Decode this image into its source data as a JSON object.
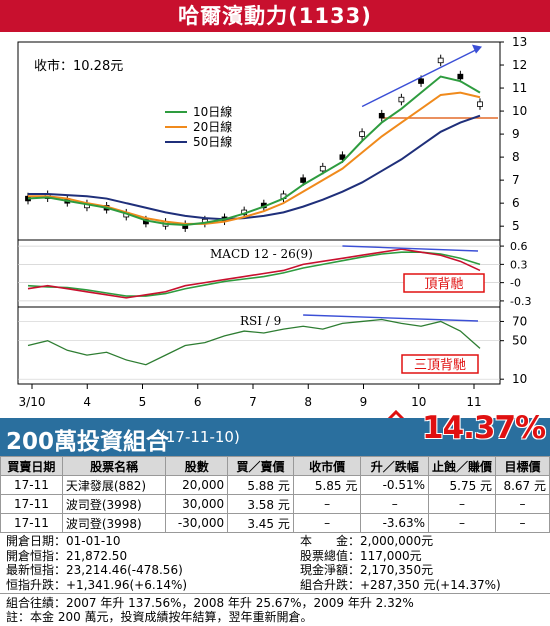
{
  "title": "哈爾濱動力(1133)",
  "chart_data": {
    "type": "line",
    "price_panel": {
      "close_label": "收市：10.28元",
      "yaxis_ticks": [
        "13",
        "12",
        "11",
        "10",
        "9",
        "8",
        "7",
        "6",
        "5"
      ],
      "ylim": [
        4.4,
        13
      ],
      "legend": [
        "10日線",
        "20日線",
        "50日線"
      ],
      "series": [
        {
          "name": "10日線",
          "color": "#2e9c3f"
        },
        {
          "name": "20日線",
          "color": "#f08a1c"
        },
        {
          "name": "50日線",
          "color": "#1f2f7a"
        }
      ],
      "reference_line": 9.7,
      "x": [
        "3/10",
        "4",
        "5",
        "6",
        "7",
        "8",
        "9",
        "10",
        "11"
      ],
      "price_approx": [
        6.2,
        6.3,
        6.1,
        5.9,
        5.8,
        5.5,
        5.2,
        5.1,
        5.0,
        5.2,
        5.3,
        5.6,
        5.9,
        6.3,
        7.0,
        7.5,
        8.0,
        9.0,
        9.8,
        10.5,
        11.3,
        12.2,
        11.5,
        10.3
      ],
      "ma10_approx": [
        6.2,
        6.25,
        6.1,
        5.95,
        5.8,
        5.55,
        5.25,
        5.1,
        5.05,
        5.15,
        5.3,
        5.55,
        5.85,
        6.2,
        6.8,
        7.3,
        7.8,
        8.7,
        9.5,
        10.1,
        10.8,
        11.5,
        11.3,
        10.8
      ],
      "ma20_approx": [
        6.3,
        6.3,
        6.2,
        6.0,
        5.85,
        5.6,
        5.35,
        5.2,
        5.1,
        5.1,
        5.2,
        5.4,
        5.65,
        6.0,
        6.5,
        7.0,
        7.5,
        8.2,
        8.9,
        9.5,
        10.1,
        10.7,
        10.8,
        10.6
      ],
      "ma50_approx": [
        6.4,
        6.4,
        6.35,
        6.3,
        6.2,
        6.0,
        5.8,
        5.6,
        5.45,
        5.35,
        5.3,
        5.35,
        5.45,
        5.6,
        5.85,
        6.15,
        6.5,
        6.9,
        7.4,
        7.9,
        8.5,
        9.1,
        9.5,
        9.8
      ]
    },
    "macd_panel": {
      "label": "MACD 12 - 26(9)",
      "yaxis_ticks": [
        "0.6",
        "0.3",
        "-0",
        "-0.3"
      ],
      "ylim": [
        -0.4,
        0.7
      ],
      "annotation": "頂背馳",
      "macd_approx": [
        -0.1,
        -0.05,
        -0.1,
        -0.15,
        -0.2,
        -0.25,
        -0.2,
        -0.15,
        -0.05,
        0.0,
        0.05,
        0.1,
        0.15,
        0.2,
        0.3,
        0.35,
        0.4,
        0.45,
        0.5,
        0.55,
        0.5,
        0.45,
        0.35,
        0.2
      ],
      "signal_approx": [
        -0.05,
        -0.07,
        -0.08,
        -0.12,
        -0.17,
        -0.22,
        -0.22,
        -0.18,
        -0.1,
        -0.04,
        0.02,
        0.06,
        0.1,
        0.16,
        0.24,
        0.3,
        0.36,
        0.42,
        0.47,
        0.5,
        0.5,
        0.47,
        0.4,
        0.3
      ]
    },
    "rsi_panel": {
      "label": "RSI / 9",
      "yaxis_ticks": [
        "70",
        "50",
        "10"
      ],
      "ylim": [
        5,
        85
      ],
      "annotation": "三頂背馳",
      "rsi_approx": [
        45,
        50,
        40,
        35,
        38,
        30,
        25,
        35,
        45,
        48,
        55,
        60,
        58,
        62,
        65,
        62,
        68,
        70,
        72,
        68,
        65,
        70,
        60,
        42
      ]
    },
    "x_ticks": [
      "3/10",
      "4",
      "5",
      "6",
      "7",
      "8",
      "9",
      "10",
      "11"
    ]
  },
  "banner": {
    "title": "200萬投資組合",
    "date": "(17-11-10)",
    "pct": "14.37%"
  },
  "table": {
    "headers": [
      "買賣日期",
      "股票名稱",
      "股數",
      "買／賣價",
      "收市價",
      "升／跌幅",
      "止蝕／賺價",
      "目標價"
    ],
    "rows": [
      [
        "17-11",
        "天津發展(882)",
        "20,000",
        "5.88 元",
        "5.85 元",
        "-0.51%",
        "5.75 元",
        "8.67 元"
      ],
      [
        "17-11",
        "波司登(3998)",
        "30,000",
        "3.58 元",
        "–",
        "–",
        "–",
        "–"
      ],
      [
        "17-11",
        "波司登(3998)",
        "-30,000",
        "3.45 元",
        "–",
        "-3.63%",
        "–",
        "–"
      ]
    ]
  },
  "summary": {
    "left": [
      "開倉日期：01-01-10",
      "開倉恒指：21,872.50",
      "最新恒指：23,214.46(-478.56)",
      "恒指升跌：+1,341.96(+6.14%)"
    ],
    "right": [
      "本　　金：2,000,000元",
      "股票總值：117,000元",
      "現金淨額：2,170,350元",
      "組合升跌：+287,350 元(+14.37%)"
    ]
  },
  "footer": [
    "組合往績：2007 年升 137.56%，2008 年升 25.67%，2009 年升 2.32%",
    "註：本金 200 萬元，投資成績按年結算，翌年重新開倉。"
  ]
}
